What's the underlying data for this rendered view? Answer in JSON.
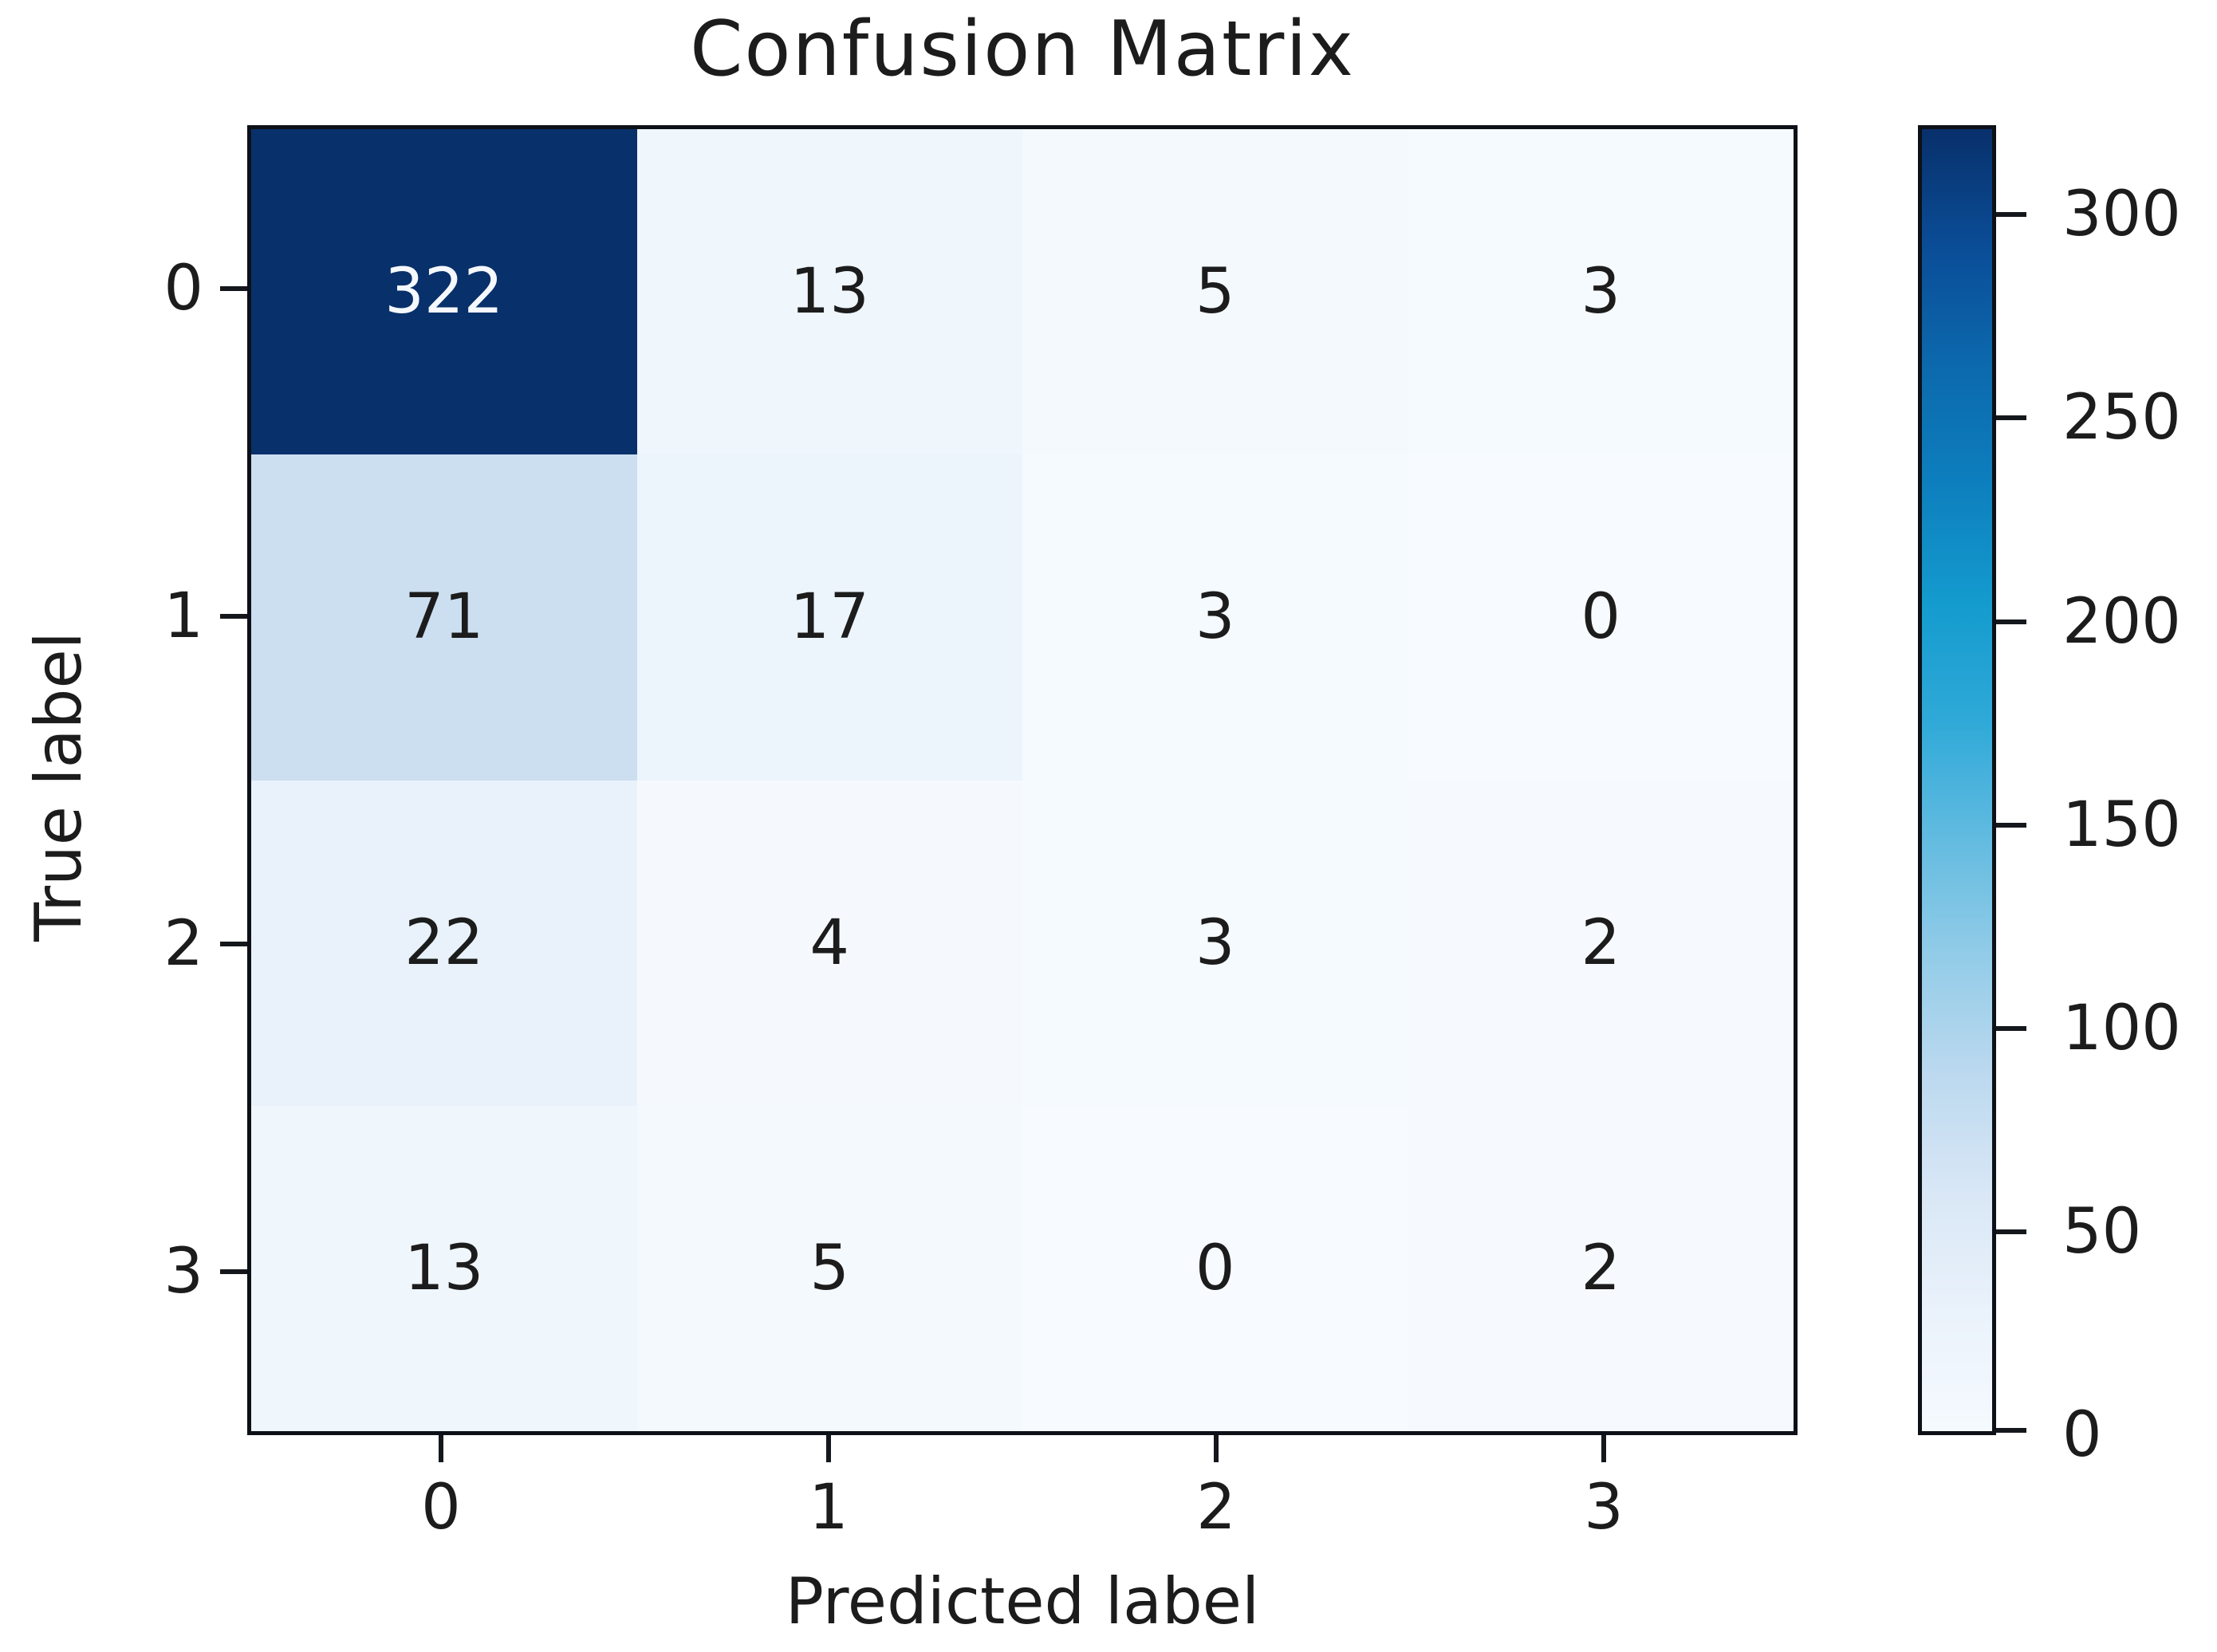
{
  "title": "Confusion Matrix",
  "xlabel": "Predicted label",
  "ylabel": "True label",
  "colors": {
    "cmap_name": "Blues",
    "cmap_anchors": [
      "#f7fbff",
      "#deebf7",
      "#c6dbef",
      "#9ecae1",
      "#6baed6",
      "#4292c6",
      "#2171b5",
      "#08519c",
      "#08306b"
    ],
    "colorbar_gradient_top_to_bottom": [
      "#08306b",
      "#0a4d97",
      "#0c69ad",
      "#0d7fbe",
      "#149bce",
      "#2fa9d8",
      "#62bbe0",
      "#93cce8",
      "#bcd9ef",
      "#d9e7f6",
      "#eaf2fb",
      "#f5fafe"
    ],
    "cell_text_dark": "#1c1c1c",
    "cell_text_light": "#f5f8fc",
    "spine": "#0d1117",
    "background": "#ffffff"
  },
  "chart_data": {
    "type": "heatmap",
    "title": "Confusion Matrix",
    "xlabel": "Predicted label",
    "ylabel": "True label",
    "x_tick_labels": [
      "0",
      "1",
      "2",
      "3"
    ],
    "y_tick_labels": [
      "0",
      "1",
      "2",
      "3"
    ],
    "matrix": [
      [
        322,
        13,
        5,
        3
      ],
      [
        71,
        17,
        3,
        0
      ],
      [
        22,
        4,
        3,
        2
      ],
      [
        13,
        5,
        0,
        2
      ]
    ],
    "colormap": "Blues",
    "vmin": 0,
    "vmax": 322,
    "grid": false,
    "colorbar": {
      "position": "right",
      "tick_values": [
        300,
        250,
        200,
        150,
        100,
        50,
        0
      ],
      "tick_labels": [
        "300",
        "250",
        "200",
        "150",
        "100",
        "50",
        "0"
      ]
    }
  }
}
